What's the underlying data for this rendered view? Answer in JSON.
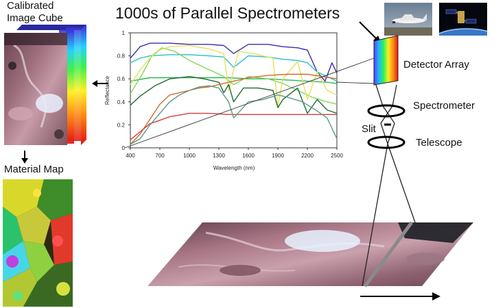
{
  "title": "1000s of  Parallel Spectrometers",
  "labels": {
    "cube": "Calibrated Image Cube",
    "material_map": "Material Map",
    "detector": "Detector Array",
    "spectrometer": "Spectrometer",
    "slit": "Slit",
    "telescope": "Telescope"
  },
  "icons": {
    "aircraft": "aircraft-photo",
    "satellite": "satellite-photo"
  },
  "chart_data": {
    "type": "line",
    "title": "",
    "xlabel": "Wavelength (nm)",
    "ylabel": "Reflectance",
    "xlim": [
      400,
      2500
    ],
    "ylim": [
      0,
      1
    ],
    "x_ticks": [
      "400",
      "700",
      "1000",
      "1300",
      "1600",
      "1900",
      "2200",
      "2500"
    ],
    "y_ticks": [
      "0",
      "0.2",
      "0.4",
      "0.6",
      "0.8",
      "1"
    ],
    "series": [
      {
        "color": "#3a2fa8",
        "x": [
          400,
          500,
          600,
          800,
          1000,
          1200,
          1350,
          1450,
          1600,
          1800,
          1950,
          2100,
          2200,
          2300,
          2380,
          2450,
          2500
        ],
        "y": [
          0.78,
          0.88,
          0.91,
          0.91,
          0.9,
          0.9,
          0.89,
          0.82,
          0.9,
          0.9,
          0.88,
          0.87,
          0.85,
          0.66,
          0.58,
          0.74,
          0.65
        ]
      },
      {
        "color": "#2bbbcc",
        "x": [
          400,
          500,
          600,
          800,
          1000,
          1200,
          1350,
          1450,
          1600,
          1800,
          1950,
          2100,
          2200,
          2300,
          2400,
          2500
        ],
        "y": [
          0.74,
          0.78,
          0.8,
          0.81,
          0.81,
          0.8,
          0.79,
          0.7,
          0.8,
          0.79,
          0.77,
          0.76,
          0.74,
          0.66,
          0.62,
          0.58
        ]
      },
      {
        "color": "#2ab84a",
        "x": [
          400,
          600,
          800,
          1000,
          1200,
          1400,
          1600,
          1800,
          2000,
          2200,
          2400,
          2500
        ],
        "y": [
          0.58,
          0.61,
          0.61,
          0.61,
          0.61,
          0.61,
          0.6,
          0.6,
          0.59,
          0.58,
          0.57,
          0.56
        ]
      },
      {
        "color": "#7fd855",
        "x": [
          400,
          520,
          620,
          720,
          850,
          1000,
          1200,
          1350,
          1450,
          1600,
          1800,
          1950,
          2100,
          2250,
          2400,
          2500
        ],
        "y": [
          0.47,
          0.64,
          0.8,
          0.87,
          0.84,
          0.76,
          0.68,
          0.62,
          0.55,
          0.62,
          0.6,
          0.56,
          0.5,
          0.44,
          0.4,
          0.38
        ]
      },
      {
        "color": "#e4e060",
        "x": [
          400,
          500,
          600,
          700,
          800,
          1000,
          1200,
          1350,
          1400,
          1450,
          1500,
          1650,
          1850,
          1900,
          1950,
          2100,
          2200,
          2300,
          2400,
          2500
        ],
        "y": [
          0.55,
          0.68,
          0.78,
          0.85,
          0.88,
          0.89,
          0.86,
          0.82,
          0.5,
          0.68,
          0.84,
          0.82,
          0.78,
          0.36,
          0.6,
          0.75,
          0.42,
          0.66,
          0.5,
          0.46
        ]
      },
      {
        "color": "#1f6a34",
        "x": [
          400,
          500,
          650,
          800,
          1000,
          1150,
          1300,
          1350,
          1400,
          1450,
          1550,
          1700,
          1850,
          1900,
          1950,
          2100,
          2200,
          2300,
          2400,
          2500
        ],
        "y": [
          0.37,
          0.45,
          0.54,
          0.6,
          0.62,
          0.6,
          0.57,
          0.48,
          0.55,
          0.4,
          0.52,
          0.52,
          0.5,
          0.35,
          0.42,
          0.52,
          0.3,
          0.42,
          0.33,
          0.3
        ]
      },
      {
        "color": "#d06a2a",
        "x": [
          400,
          500,
          600,
          700,
          800,
          900,
          1000,
          1100,
          1200,
          1300,
          1450,
          1600,
          1800,
          2000,
          2200,
          2350,
          2500
        ],
        "y": [
          0.03,
          0.12,
          0.25,
          0.38,
          0.46,
          0.48,
          0.5,
          0.52,
          0.53,
          0.55,
          0.58,
          0.61,
          0.63,
          0.64,
          0.64,
          0.62,
          0.6
        ]
      },
      {
        "color": "#d93c3c",
        "x": [
          400,
          500,
          600,
          700,
          800,
          1000,
          1200,
          1400,
          1600,
          1800,
          2000,
          2200,
          2400,
          2500
        ],
        "y": [
          0.07,
          0.14,
          0.21,
          0.24,
          0.27,
          0.3,
          0.3,
          0.29,
          0.29,
          0.29,
          0.29,
          0.29,
          0.29,
          0.29
        ]
      },
      {
        "color": "#5a9a86",
        "x": [
          400,
          500,
          600,
          700,
          800,
          900,
          1000,
          1100,
          1200,
          1300,
          1400,
          1450,
          1600,
          1750,
          1900,
          2000,
          2150,
          2300,
          2400,
          2500
        ],
        "y": [
          0.03,
          0.08,
          0.2,
          0.3,
          0.4,
          0.46,
          0.5,
          0.53,
          0.54,
          0.52,
          0.4,
          0.26,
          0.4,
          0.42,
          0.46,
          0.44,
          0.4,
          0.32,
          0.26,
          0.08
        ]
      }
    ]
  }
}
